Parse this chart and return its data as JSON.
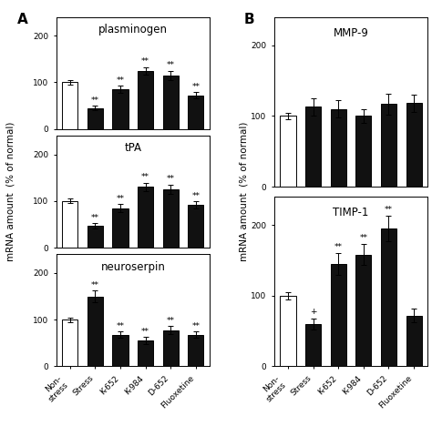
{
  "categories": [
    "Non-\nstress",
    "Stress",
    "K-652",
    "K-984",
    "D-652",
    "Fluoxetine"
  ],
  "panel_A": {
    "plasminogen": {
      "values": [
        100,
        45,
        85,
        125,
        115,
        72
      ],
      "errors": [
        5,
        5,
        8,
        8,
        10,
        7
      ],
      "sig": [
        "",
        "**",
        "**",
        "**",
        "**",
        "**"
      ]
    },
    "tPA": {
      "values": [
        100,
        47,
        85,
        130,
        125,
        92
      ],
      "errors": [
        5,
        5,
        8,
        9,
        10,
        7
      ],
      "sig": [
        "",
        "**",
        "**",
        "**",
        "**",
        "**"
      ]
    },
    "neuroserpin": {
      "values": [
        100,
        150,
        68,
        55,
        78,
        68
      ],
      "errors": [
        5,
        12,
        7,
        8,
        8,
        7
      ],
      "sig": [
        "",
        "**",
        "**",
        "**",
        "**",
        "**"
      ]
    }
  },
  "panel_B": {
    "MMP-9": {
      "values": [
        100,
        113,
        110,
        100,
        117,
        118
      ],
      "errors": [
        5,
        12,
        12,
        10,
        15,
        12
      ],
      "sig": [
        "",
        "",
        "",
        "",
        "",
        ""
      ],
      "ylim": [
        0,
        240
      ],
      "yticks": [
        0,
        100,
        200
      ]
    },
    "TIMP-1": {
      "values": [
        100,
        60,
        145,
        158,
        195,
        72
      ],
      "errors": [
        5,
        8,
        15,
        15,
        18,
        10
      ],
      "sig": [
        "",
        "+",
        "**",
        "**",
        "**",
        ""
      ],
      "ylim": [
        0,
        240
      ],
      "yticks": [
        0,
        100,
        200
      ]
    }
  },
  "bar_color_first": "#ffffff",
  "bar_color_rest": "#111111",
  "bar_edge_color": "#000000",
  "ylabel": "mRNA amount  (% of normal)",
  "yticks_A": [
    0,
    100,
    200
  ],
  "ylim_A": [
    0,
    240
  ],
  "background_color": "#ffffff",
  "fontsize_title": 8.5,
  "fontsize_tick": 6.5,
  "fontsize_label": 7.5,
  "fontsize_sig": 6.5,
  "fontsize_panel": 11
}
